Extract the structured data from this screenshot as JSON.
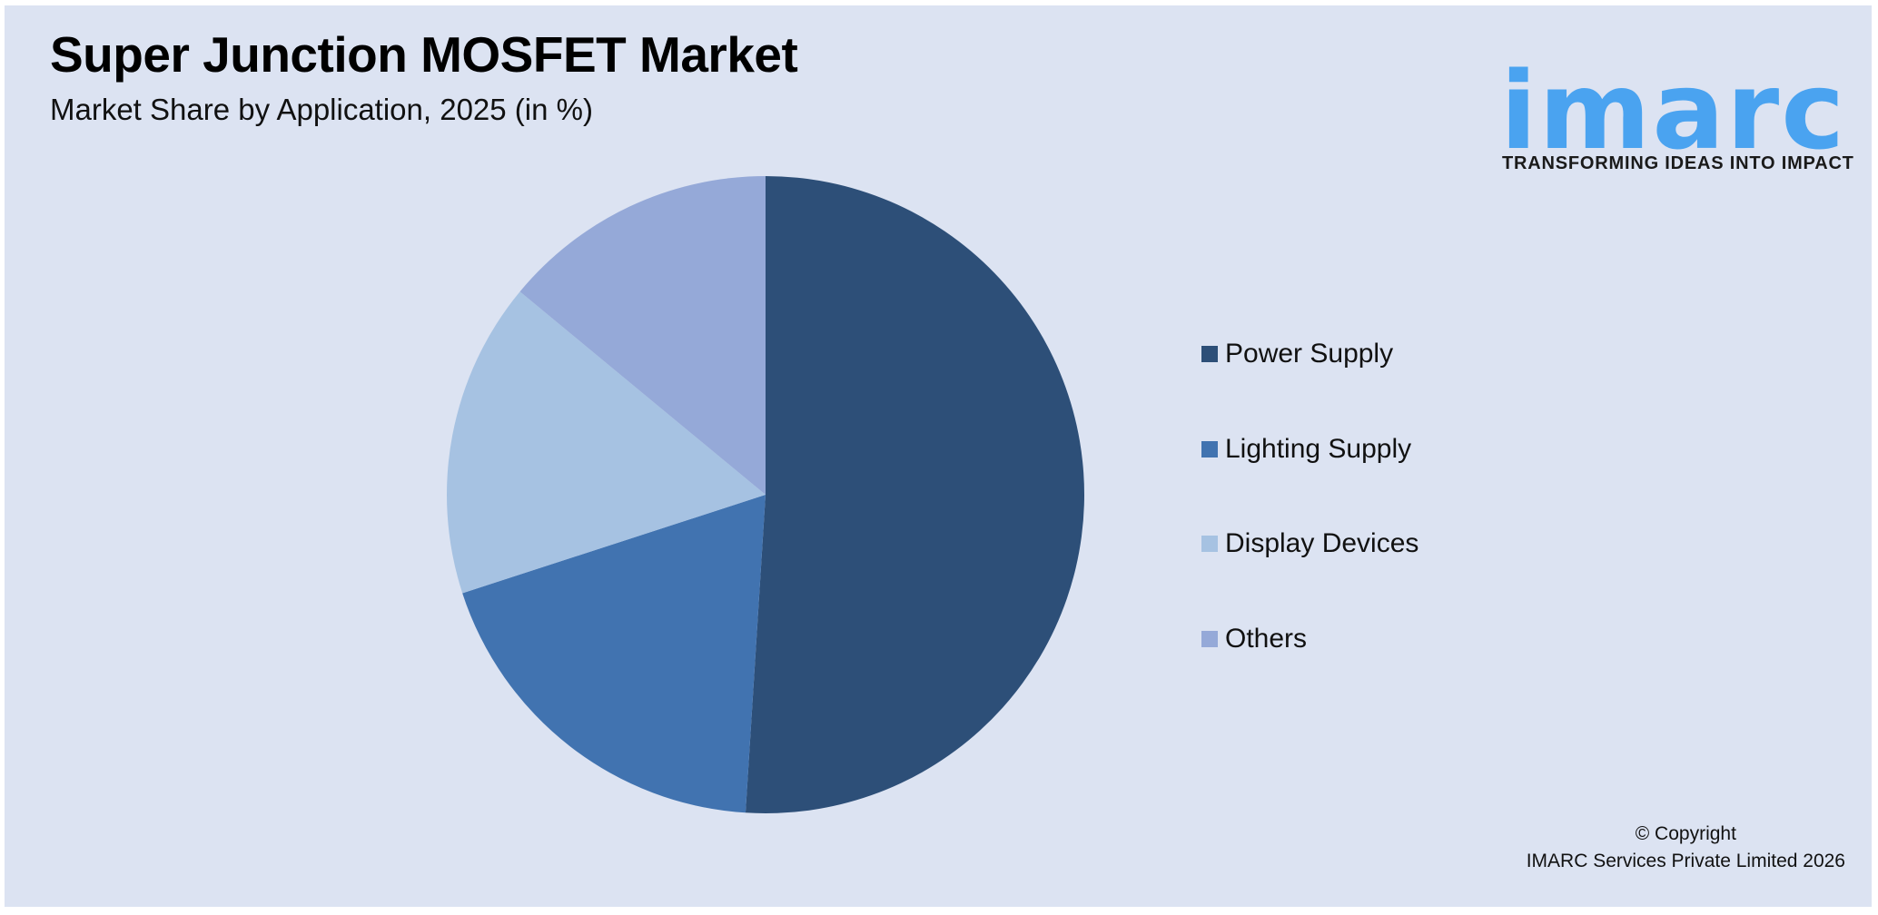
{
  "header": {
    "title": "Super Junction MOSFET Market",
    "subtitle": "Market Share by Application, 2025 (in %)"
  },
  "logo": {
    "wordmark": "imarc",
    "tagline": "TRANSFORMING IDEAS INTO IMPACT",
    "color": "#4aa3f0"
  },
  "legend": {
    "items": [
      {
        "label": "Power Supply",
        "color": "#2d4f78"
      },
      {
        "label": "Lighting Supply",
        "color": "#4173b0"
      },
      {
        "label": "Display Devices",
        "color": "#a6c2e2"
      },
      {
        "label": "Others",
        "color": "#95a9d8"
      }
    ]
  },
  "footer": {
    "copyright_line1": "© Copyright",
    "copyright_line2": "IMARC Services Private Limited 2026"
  },
  "chart_data": {
    "type": "pie",
    "title": "Super Junction MOSFET Market",
    "subtitle": "Market Share by Application, 2025 (in %)",
    "categories": [
      "Power Supply",
      "Lighting Supply",
      "Display Devices",
      "Others"
    ],
    "values": [
      51,
      19,
      16,
      14
    ],
    "colors": [
      "#2d4f78",
      "#4173b0",
      "#a6c2e2",
      "#95a9d8"
    ],
    "start_angle_deg": 0,
    "direction": "clockwise",
    "legend_position": "right",
    "data_labels": false
  }
}
